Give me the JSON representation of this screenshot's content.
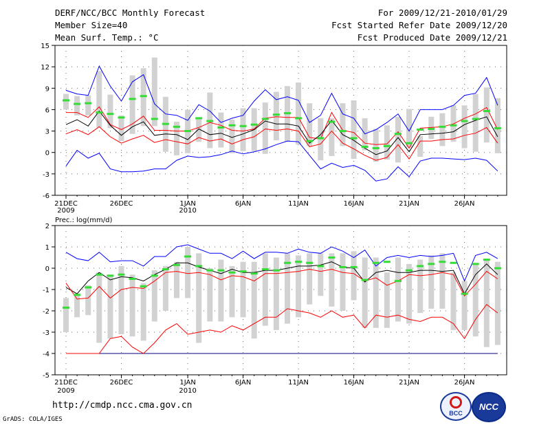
{
  "header": {
    "title": "DERF/NCC/BCC Monthly Forecast",
    "member_size": "Member Size=40",
    "variable": "Mean Surf. Temp.: °C",
    "period": "For 2009/12/21-2010/01/29",
    "started": "Fcst Started Refer Date 2009/12/20",
    "produced": "Fcst Produced Date 2009/12/21"
  },
  "footer": {
    "url": "http://cmdp.ncc.cma.gov.cn",
    "grads": "GrADS: COLA/IGES",
    "logo_bcc": "BCC",
    "logo_ncc": "NCC"
  },
  "chart_data": [
    {
      "type": "box-time-series",
      "title": "Mean Surf. Temp.: °C",
      "ylim": [
        -6,
        15
      ],
      "yticks": [
        "-6",
        "-3",
        "0",
        "3",
        "6",
        "9",
        "12",
        "15"
      ],
      "x_labels": [
        {
          "day": 1,
          "label": "21DEC",
          "sub": "2009"
        },
        {
          "day": 6,
          "label": "26DEC",
          "sub": ""
        },
        {
          "day": 12,
          "label": "1JAN",
          "sub": "2010"
        },
        {
          "day": 17,
          "label": "6JAN",
          "sub": ""
        },
        {
          "day": 22,
          "label": "11JAN",
          "sub": ""
        },
        {
          "day": 27,
          "label": "16JAN",
          "sub": ""
        },
        {
          "day": 32,
          "label": "21JAN",
          "sub": ""
        },
        {
          "day": 37,
          "label": "26JAN",
          "sub": ""
        }
      ],
      "days": 40,
      "box_low": [
        6.0,
        5.2,
        5.2,
        3.5,
        3.4,
        1.6,
        2.6,
        3.7,
        3.7,
        0.1,
        -0.4,
        -0.1,
        1.5,
        0.6,
        0.7,
        -0.1,
        0.2,
        0.2,
        -0.2,
        1.7,
        1.5,
        1.1,
        0.9,
        -1.1,
        -0.5,
        0.9,
        -0.9,
        0.3,
        -1.3,
        -1.0,
        -1.4,
        0.7,
        -0.6,
        1.9,
        0.9,
        1.5,
        0.6,
        0.1,
        1.4,
        -0.1
      ],
      "box_high": [
        8.2,
        7.9,
        8.0,
        11.4,
        8.1,
        5.2,
        10.8,
        11.8,
        13.3,
        7.8,
        4.3,
        6.0,
        4.8,
        8.4,
        5.6,
        4.6,
        6.2,
        6.2,
        7.0,
        8.5,
        9.3,
        9.8,
        6.9,
        4.8,
        4.8,
        6.9,
        7.3,
        4.8,
        3.3,
        3.8,
        5.0,
        6.1,
        2.3,
        5.0,
        5.5,
        6.6,
        6.6,
        8.2,
        9.1,
        7.6
      ],
      "series": [
        {
          "name": "max",
          "color": "#0000ff",
          "values": [
            8.7,
            8.2,
            8.0,
            12.1,
            9.3,
            7.2,
            9.9,
            10.9,
            6.8,
            5.4,
            5.2,
            4.5,
            6.7,
            5.8,
            4.2,
            4.8,
            5.2,
            7.2,
            8.8,
            7.4,
            7.8,
            7.3,
            4.2,
            5.2,
            8.3,
            5.4,
            4.8,
            2.6,
            3.2,
            4.2,
            5.4,
            3.0,
            6.0,
            6.0,
            6.0,
            6.6,
            8.0,
            8.3,
            10.5,
            6.6
          ]
        },
        {
          "name": "upper",
          "color": "#ff0000",
          "values": [
            5.6,
            5.6,
            4.9,
            6.4,
            3.9,
            3.2,
            4.0,
            5.1,
            3.1,
            3.1,
            3.0,
            3.0,
            3.5,
            4.2,
            3.8,
            3.1,
            3.0,
            3.3,
            4.8,
            5.0,
            4.9,
            4.9,
            2.1,
            1.9,
            5.6,
            3.1,
            2.8,
            1.3,
            1.1,
            1.2,
            2.9,
            0.6,
            3.4,
            3.5,
            3.6,
            4.0,
            4.8,
            5.4,
            6.3,
            3.2
          ]
        },
        {
          "name": "mean",
          "color": "#000000",
          "values": [
            3.9,
            4.6,
            3.7,
            5.8,
            3.8,
            2.4,
            3.6,
            4.3,
            2.4,
            2.6,
            2.5,
            1.8,
            3.3,
            2.5,
            2.7,
            2.1,
            2.6,
            3.2,
            4.4,
            4.0,
            4.0,
            3.7,
            1.3,
            2.5,
            4.5,
            2.5,
            1.7,
            0.6,
            -0.3,
            0.2,
            2.1,
            0.1,
            2.5,
            2.6,
            2.7,
            2.9,
            3.9,
            4.5,
            5.0,
            2.2
          ]
        },
        {
          "name": "lower",
          "color": "#ff0000",
          "values": [
            2.6,
            3.2,
            2.5,
            3.6,
            2.2,
            1.3,
            1.9,
            2.4,
            1.4,
            1.8,
            1.5,
            1.2,
            2.1,
            1.6,
            1.9,
            1.2,
            1.8,
            2.2,
            3.3,
            3.1,
            3.3,
            3.0,
            0.8,
            1.2,
            3.0,
            1.3,
            0.5,
            -0.4,
            -1.1,
            -0.7,
            1.1,
            -0.9,
            1.6,
            1.6,
            1.8,
            1.9,
            2.4,
            2.7,
            3.5,
            1.3
          ]
        },
        {
          "name": "min",
          "color": "#0000ff",
          "values": [
            -1.9,
            0.3,
            -0.8,
            -0.1,
            -2.3,
            -2.7,
            -2.7,
            -2.6,
            -2.3,
            -2.3,
            -1.1,
            -0.5,
            -0.7,
            -0.6,
            -0.3,
            0.2,
            -0.2,
            0.1,
            0.5,
            1.1,
            1.6,
            1.5,
            -0.4,
            -2.3,
            -1.5,
            -2.1,
            -1.8,
            -2.5,
            -4.0,
            -3.7,
            -2.0,
            -3.4,
            -1.2,
            -0.8,
            -0.8,
            -0.9,
            -1.0,
            -0.8,
            -1.1,
            -2.6
          ]
        }
      ],
      "markers": [
        7.3,
        6.8,
        6.9,
        5.6,
        5.4,
        4.9,
        7.5,
        7.9,
        4.7,
        4.0,
        3.6,
        3.0,
        4.8,
        4.4,
        3.5,
        3.8,
        3.7,
        3.9,
        4.7,
        5.3,
        5.5,
        4.8,
        1.6,
        2.0,
        4.3,
        3.0,
        2.0,
        0.8,
        0.6,
        0.9,
        2.6,
        1.3,
        3.2,
        3.3,
        3.6,
        3.8,
        4.4,
        4.7,
        5.8,
        3.4
      ]
    },
    {
      "type": "box-time-series",
      "title": "Prec.: log(mm/d)",
      "ylim": [
        -5,
        2
      ],
      "yticks": [
        "-5",
        "-4",
        "-3",
        "-2",
        "-1",
        "0",
        "1",
        "2"
      ],
      "x_labels": [
        {
          "day": 1,
          "label": "21DEC",
          "sub": "2009"
        },
        {
          "day": 6,
          "label": "26DEC",
          "sub": ""
        },
        {
          "day": 12,
          "label": "1JAN",
          "sub": "2010"
        },
        {
          "day": 17,
          "label": "6JAN",
          "sub": ""
        },
        {
          "day": 22,
          "label": "11JAN",
          "sub": ""
        },
        {
          "day": 27,
          "label": "16JAN",
          "sub": ""
        },
        {
          "day": 32,
          "label": "21JAN",
          "sub": ""
        },
        {
          "day": 37,
          "label": "26JAN",
          "sub": ""
        }
      ],
      "days": 40,
      "box_low": [
        -3.0,
        -2.3,
        -2.2,
        -3.5,
        -3.3,
        -3.1,
        -3.2,
        -3.4,
        -2.5,
        -2.0,
        -1.4,
        -1.4,
        -3.5,
        -2.5,
        -2.5,
        -2.3,
        -2.3,
        -3.3,
        -2.7,
        -2.9,
        -2.6,
        -2.3,
        -1.7,
        -1.3,
        -1.8,
        -2.0,
        -1.5,
        -2.8,
        -2.8,
        -2.8,
        -2.5,
        -2.6,
        -2.1,
        -1.9,
        -1.9,
        -2.9,
        -2.9,
        -3.2,
        -3.7,
        -3.6
      ],
      "box_high": [
        -1.4,
        -1.3,
        -0.8,
        -0.2,
        -0.3,
        0.1,
        -0.3,
        -0.7,
        -0.1,
        0.1,
        0.3,
        1.0,
        0.7,
        0.0,
        0.4,
        0.1,
        0.3,
        0.3,
        0.7,
        0.5,
        0.7,
        0.6,
        0.7,
        0.7,
        0.7,
        0.7,
        0.8,
        0.5,
        0.5,
        -0.2,
        0.5,
        0.2,
        0.4,
        0.6,
        0.7,
        -0.2,
        -0.6,
        0.2,
        0.4,
        0.3
      ],
      "series": [
        {
          "name": "max",
          "color": "#0000ff",
          "values": [
            0.75,
            0.45,
            0.35,
            0.75,
            0.3,
            0.35,
            0.35,
            0.1,
            0.55,
            0.55,
            1.0,
            1.1,
            0.9,
            0.7,
            0.7,
            0.45,
            0.8,
            0.45,
            0.75,
            0.75,
            0.7,
            0.9,
            0.75,
            0.7,
            1.0,
            0.8,
            0.5,
            0.85,
            0.1,
            0.5,
            0.6,
            0.5,
            0.6,
            0.55,
            0.6,
            0.7,
            -0.6,
            0.6,
            0.75,
            0.45
          ]
        },
        {
          "name": "upper",
          "color": "#000000",
          "values": [
            -0.9,
            -1.2,
            -0.6,
            -0.2,
            -0.55,
            -0.4,
            -0.45,
            -0.6,
            -0.3,
            -0.05,
            0.25,
            0.25,
            0.05,
            -0.1,
            -0.25,
            -0.05,
            -0.2,
            -0.2,
            -0.1,
            -0.1,
            0.0,
            0.1,
            0.1,
            0.15,
            0.3,
            0.05,
            0.0,
            -0.65,
            -0.2,
            -0.1,
            -0.2,
            -0.2,
            -0.1,
            -0.1,
            -0.15,
            -0.1,
            -1.2,
            -0.3,
            0.2,
            -0.3
          ]
        },
        {
          "name": "lower",
          "color": "#ff0000",
          "values": [
            -0.7,
            -1.45,
            -1.4,
            -0.85,
            -1.4,
            -1.0,
            -0.9,
            -0.95,
            -0.6,
            -0.2,
            -0.15,
            -0.25,
            -0.2,
            -0.3,
            -0.55,
            -0.35,
            -0.4,
            -0.6,
            -0.25,
            -0.25,
            -0.2,
            -0.15,
            -0.05,
            -0.15,
            -0.05,
            -0.2,
            -0.25,
            -0.6,
            -0.45,
            -0.8,
            -0.6,
            -0.3,
            -0.35,
            -0.3,
            -0.2,
            -0.3,
            -1.3,
            -0.75,
            -0.15,
            -0.5
          ]
        },
        {
          "name": "min",
          "color": "#ff0000",
          "values": [
            -4.0,
            -4.0,
            -4.0,
            -4.0,
            -3.3,
            -3.2,
            -3.7,
            -4.0,
            -3.5,
            -2.9,
            -2.6,
            -3.1,
            -3.0,
            -2.9,
            -3.0,
            -2.7,
            -2.9,
            -2.6,
            -2.3,
            -2.3,
            -1.9,
            -2.0,
            -2.1,
            -2.3,
            -2.0,
            -2.3,
            -2.2,
            -2.8,
            -2.2,
            -2.3,
            -2.2,
            -2.4,
            -2.5,
            -2.3,
            -2.3,
            -2.6,
            -3.3,
            -2.4,
            -1.7,
            -2.1
          ]
        }
      ],
      "floor": -4.0,
      "markers": [
        -1.85,
        -1.25,
        -0.9,
        -0.3,
        -0.35,
        -0.3,
        -0.5,
        -0.85,
        -0.35,
        -0.05,
        0.15,
        0.55,
        0.1,
        -0.1,
        -0.1,
        -0.2,
        -0.15,
        -0.25,
        -0.05,
        -0.1,
        0.25,
        0.3,
        0.25,
        0.1,
        0.5,
        0.05,
        0.05,
        -0.55,
        0.25,
        0.3,
        -0.6,
        -0.1,
        0.1,
        0.2,
        0.3,
        0.25,
        -1.2,
        0.2,
        0.4,
        0.0
      ]
    }
  ]
}
